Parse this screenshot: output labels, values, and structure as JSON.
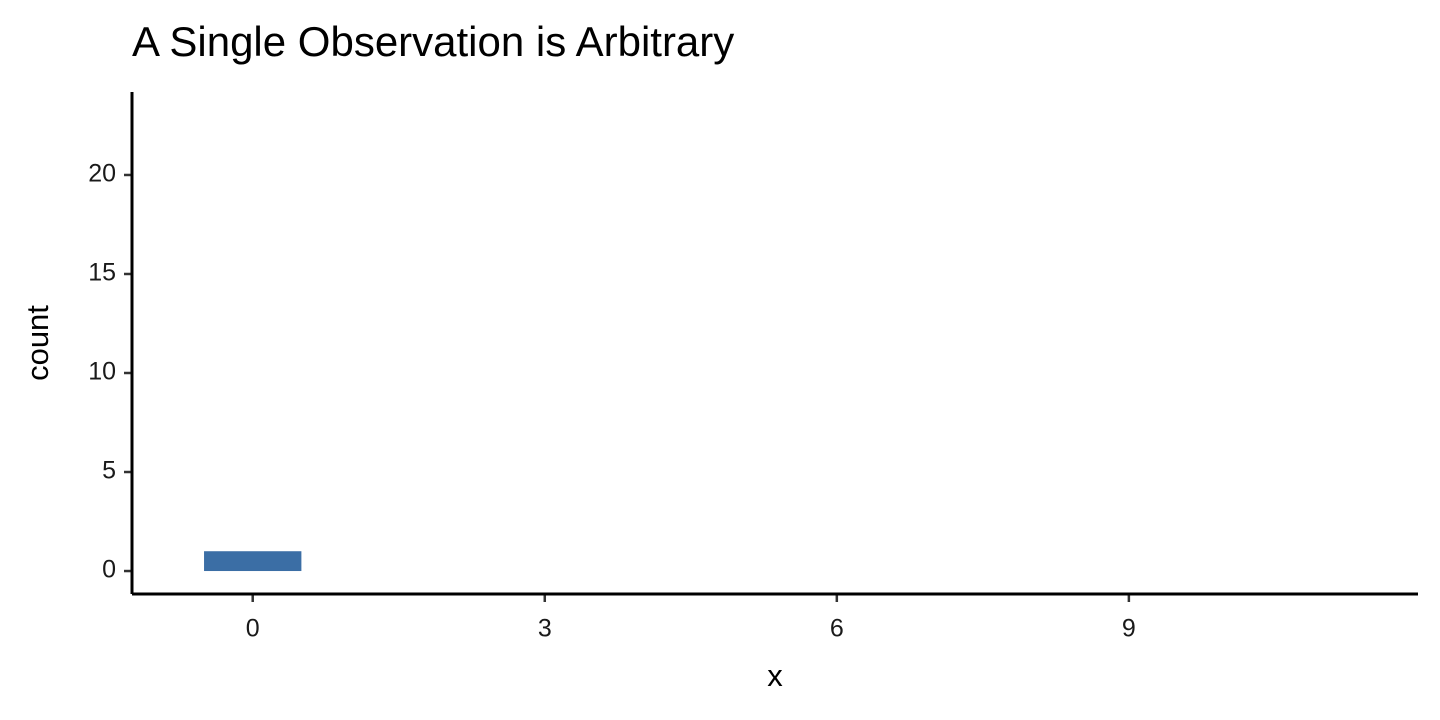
{
  "chart_data": {
    "type": "histogram",
    "title": "A Single Observation is Arbitrary",
    "x_label": "x",
    "y_label": "count",
    "bins": [
      -0.5,
      0.5
    ],
    "values": [
      1
    ],
    "color": "#3b6ea5",
    "xlim": [
      -1.24,
      11.97
    ],
    "xticks": [
      0,
      3,
      6,
      9
    ],
    "ylim": [
      -1.16,
      24.19
    ],
    "yticks": [
      0,
      5,
      10,
      15,
      20
    ],
    "grid": false
  }
}
